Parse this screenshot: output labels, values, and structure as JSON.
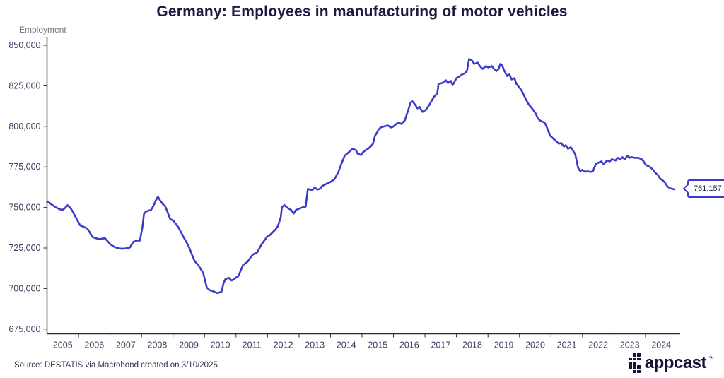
{
  "title": "Germany: Employees in manufacturing of motor vehicles",
  "colors": {
    "line": "#3c3ac8",
    "axis": "#2a2a2e",
    "tick_text": "#3d3d5e",
    "title_text": "#1a1a42",
    "ylabel_text": "#71717d",
    "brand_ink": "#141438"
  },
  "callout": {
    "value": "761,157"
  },
  "footer": {
    "source": "Source: DESTATIS via Macrobond created on 3/10/2025",
    "brand": "appcast",
    "brand_mark": "™",
    "logo_pattern": [
      [
        0,
        1,
        1
      ],
      [
        1,
        1,
        1
      ],
      [
        1,
        1,
        0
      ],
      [
        1,
        1,
        1
      ],
      [
        0,
        1,
        1
      ]
    ]
  },
  "chart_data": {
    "type": "line",
    "title": "Germany: Employees in manufacturing of motor vehicles",
    "xlabel": "",
    "ylabel": "Employment",
    "ylim": [
      675000,
      855000
    ],
    "xlim": [
      2005,
      2025
    ],
    "grid": false,
    "legend": false,
    "latest_value": 761157,
    "y_ticks": [
      {
        "value": 850000,
        "label": "850,000"
      },
      {
        "value": 825000,
        "label": "825,000"
      },
      {
        "value": 800000,
        "label": "800,000"
      },
      {
        "value": 775000,
        "label": "775,000"
      },
      {
        "value": 750000,
        "label": "750,000"
      },
      {
        "value": 725000,
        "label": "725,000"
      },
      {
        "value": 700000,
        "label": "700,000"
      },
      {
        "value": 675000,
        "label": "675,000"
      }
    ],
    "x_ticks": [
      "2005",
      "2006",
      "2007",
      "2008",
      "2009",
      "2010",
      "2011",
      "2012",
      "2013",
      "2014",
      "2015",
      "2016",
      "2017",
      "2018",
      "2019",
      "2020",
      "2021",
      "2022",
      "2023",
      "2024"
    ],
    "series": [
      {
        "name": "Employees in manufacturing of motor vehicles",
        "points": [
          [
            2005.0,
            753700
          ],
          [
            2005.08,
            752800
          ],
          [
            2005.17,
            751500
          ],
          [
            2005.25,
            750500
          ],
          [
            2005.33,
            749500
          ],
          [
            2005.42,
            748800
          ],
          [
            2005.49,
            748400
          ],
          [
            2005.57,
            749600
          ],
          [
            2005.65,
            751400
          ],
          [
            2005.75,
            749500
          ],
          [
            2005.83,
            747000
          ],
          [
            2005.95,
            742500
          ],
          [
            2006.05,
            739000
          ],
          [
            2006.17,
            738000
          ],
          [
            2006.28,
            737000
          ],
          [
            2006.36,
            734500
          ],
          [
            2006.44,
            731800
          ],
          [
            2006.55,
            731000
          ],
          [
            2006.66,
            730500
          ],
          [
            2006.76,
            730800
          ],
          [
            2006.84,
            731000
          ],
          [
            2006.93,
            729000
          ],
          [
            2007.0,
            727500
          ],
          [
            2007.09,
            726200
          ],
          [
            2007.18,
            725300
          ],
          [
            2007.3,
            724700
          ],
          [
            2007.4,
            724500
          ],
          [
            2007.5,
            724800
          ],
          [
            2007.63,
            725300
          ],
          [
            2007.74,
            728800
          ],
          [
            2007.85,
            729600
          ],
          [
            2007.95,
            729600
          ],
          [
            2008.03,
            738000
          ],
          [
            2008.08,
            746200
          ],
          [
            2008.15,
            747500
          ],
          [
            2008.22,
            748000
          ],
          [
            2008.3,
            748400
          ],
          [
            2008.38,
            751000
          ],
          [
            2008.45,
            754200
          ],
          [
            2008.52,
            756600
          ],
          [
            2008.6,
            754000
          ],
          [
            2008.68,
            752000
          ],
          [
            2008.75,
            750800
          ],
          [
            2008.83,
            747000
          ],
          [
            2008.91,
            742900
          ],
          [
            2009.02,
            741600
          ],
          [
            2009.1,
            739500
          ],
          [
            2009.17,
            737700
          ],
          [
            2009.26,
            734500
          ],
          [
            2009.35,
            731200
          ],
          [
            2009.43,
            728500
          ],
          [
            2009.51,
            725500
          ],
          [
            2009.6,
            721000
          ],
          [
            2009.69,
            716800
          ],
          [
            2009.8,
            714600
          ],
          [
            2009.88,
            712000
          ],
          [
            2009.96,
            709400
          ],
          [
            2010.07,
            700700
          ],
          [
            2010.16,
            699000
          ],
          [
            2010.25,
            698500
          ],
          [
            2010.33,
            697800
          ],
          [
            2010.41,
            697200
          ],
          [
            2010.48,
            697600
          ],
          [
            2010.54,
            698100
          ],
          [
            2010.6,
            703000
          ],
          [
            2010.66,
            705700
          ],
          [
            2010.77,
            706600
          ],
          [
            2010.86,
            704900
          ],
          [
            2010.95,
            706000
          ],
          [
            2011.08,
            707900
          ],
          [
            2011.22,
            714400
          ],
          [
            2011.37,
            716600
          ],
          [
            2011.53,
            720900
          ],
          [
            2011.67,
            722200
          ],
          [
            2011.82,
            727500
          ],
          [
            2011.98,
            731800
          ],
          [
            2012.08,
            733000
          ],
          [
            2012.17,
            734800
          ],
          [
            2012.25,
            736300
          ],
          [
            2012.33,
            738500
          ],
          [
            2012.42,
            744000
          ],
          [
            2012.46,
            750300
          ],
          [
            2012.54,
            751400
          ],
          [
            2012.61,
            750100
          ],
          [
            2012.68,
            749200
          ],
          [
            2012.75,
            748400
          ],
          [
            2012.83,
            746200
          ],
          [
            2012.9,
            748400
          ],
          [
            2013.0,
            749200
          ],
          [
            2013.06,
            749700
          ],
          [
            2013.12,
            750100
          ],
          [
            2013.21,
            750500
          ],
          [
            2013.28,
            761400
          ],
          [
            2013.35,
            761000
          ],
          [
            2013.42,
            760600
          ],
          [
            2013.5,
            762300
          ],
          [
            2013.58,
            761000
          ],
          [
            2013.66,
            761400
          ],
          [
            2013.73,
            763100
          ],
          [
            2013.85,
            764400
          ],
          [
            2013.92,
            765000
          ],
          [
            2014.0,
            765700
          ],
          [
            2014.13,
            767500
          ],
          [
            2014.25,
            771900
          ],
          [
            2014.33,
            776200
          ],
          [
            2014.45,
            781900
          ],
          [
            2014.58,
            784000
          ],
          [
            2014.7,
            786200
          ],
          [
            2014.81,
            785300
          ],
          [
            2014.86,
            783200
          ],
          [
            2014.97,
            782300
          ],
          [
            2015.03,
            784000
          ],
          [
            2015.1,
            785000
          ],
          [
            2015.19,
            786200
          ],
          [
            2015.27,
            787500
          ],
          [
            2015.35,
            789300
          ],
          [
            2015.41,
            794100
          ],
          [
            2015.53,
            798000
          ],
          [
            2015.59,
            799300
          ],
          [
            2015.75,
            800200
          ],
          [
            2015.83,
            800500
          ],
          [
            2015.91,
            799300
          ],
          [
            2015.98,
            799700
          ],
          [
            2016.09,
            801500
          ],
          [
            2016.16,
            802300
          ],
          [
            2016.25,
            801500
          ],
          [
            2016.36,
            803700
          ],
          [
            2016.47,
            810200
          ],
          [
            2016.54,
            814600
          ],
          [
            2016.6,
            815400
          ],
          [
            2016.69,
            813300
          ],
          [
            2016.76,
            811100
          ],
          [
            2016.83,
            812000
          ],
          [
            2016.92,
            808900
          ],
          [
            2017.03,
            810200
          ],
          [
            2017.14,
            813300
          ],
          [
            2017.28,
            818100
          ],
          [
            2017.39,
            820300
          ],
          [
            2017.43,
            826200
          ],
          [
            2017.55,
            826700
          ],
          [
            2017.66,
            828400
          ],
          [
            2017.73,
            826700
          ],
          [
            2017.82,
            828000
          ],
          [
            2017.88,
            825400
          ],
          [
            2018.0,
            829700
          ],
          [
            2018.11,
            831000
          ],
          [
            2018.18,
            832000
          ],
          [
            2018.27,
            832800
          ],
          [
            2018.33,
            834100
          ],
          [
            2018.4,
            841500
          ],
          [
            2018.49,
            840600
          ],
          [
            2018.56,
            838500
          ],
          [
            2018.67,
            839300
          ],
          [
            2018.74,
            837200
          ],
          [
            2018.83,
            835400
          ],
          [
            2018.94,
            837200
          ],
          [
            2019.01,
            836300
          ],
          [
            2019.12,
            837200
          ],
          [
            2019.19,
            835400
          ],
          [
            2019.27,
            834100
          ],
          [
            2019.34,
            835400
          ],
          [
            2019.39,
            838500
          ],
          [
            2019.45,
            837600
          ],
          [
            2019.52,
            834100
          ],
          [
            2019.61,
            831000
          ],
          [
            2019.68,
            832000
          ],
          [
            2019.75,
            828900
          ],
          [
            2019.84,
            829700
          ],
          [
            2019.9,
            826200
          ],
          [
            2019.97,
            824500
          ],
          [
            2020.06,
            822300
          ],
          [
            2020.13,
            819700
          ],
          [
            2020.2,
            816700
          ],
          [
            2020.29,
            813600
          ],
          [
            2020.4,
            811000
          ],
          [
            2020.51,
            808000
          ],
          [
            2020.58,
            805000
          ],
          [
            2020.64,
            803700
          ],
          [
            2020.73,
            802800
          ],
          [
            2020.8,
            802300
          ],
          [
            2020.87,
            799300
          ],
          [
            2020.98,
            794100
          ],
          [
            2021.1,
            791900
          ],
          [
            2021.18,
            790600
          ],
          [
            2021.25,
            789300
          ],
          [
            2021.32,
            789700
          ],
          [
            2021.41,
            787500
          ],
          [
            2021.47,
            788400
          ],
          [
            2021.54,
            786200
          ],
          [
            2021.63,
            787100
          ],
          [
            2021.7,
            785000
          ],
          [
            2021.77,
            782800
          ],
          [
            2021.86,
            774500
          ],
          [
            2021.93,
            772300
          ],
          [
            2021.99,
            773200
          ],
          [
            2022.08,
            771900
          ],
          [
            2022.15,
            772300
          ],
          [
            2022.26,
            771900
          ],
          [
            2022.33,
            772300
          ],
          [
            2022.42,
            776700
          ],
          [
            2022.49,
            777500
          ],
          [
            2022.6,
            778400
          ],
          [
            2022.67,
            776700
          ],
          [
            2022.78,
            778900
          ],
          [
            2022.87,
            778400
          ],
          [
            2022.93,
            779700
          ],
          [
            2023.05,
            778900
          ],
          [
            2023.11,
            780600
          ],
          [
            2023.2,
            779700
          ],
          [
            2023.27,
            781000
          ],
          [
            2023.34,
            779700
          ],
          [
            2023.43,
            781900
          ],
          [
            2023.5,
            780600
          ],
          [
            2023.56,
            781000
          ],
          [
            2023.65,
            780600
          ],
          [
            2023.77,
            780600
          ],
          [
            2023.88,
            779700
          ],
          [
            2023.94,
            778400
          ],
          [
            2024.01,
            776200
          ],
          [
            2024.1,
            775400
          ],
          [
            2024.17,
            774500
          ],
          [
            2024.24,
            773200
          ],
          [
            2024.33,
            771000
          ],
          [
            2024.39,
            770100
          ],
          [
            2024.46,
            767900
          ],
          [
            2024.55,
            766600
          ],
          [
            2024.62,
            765300
          ],
          [
            2024.69,
            763100
          ],
          [
            2024.78,
            761800
          ],
          [
            2024.92,
            761157
          ]
        ]
      }
    ]
  }
}
